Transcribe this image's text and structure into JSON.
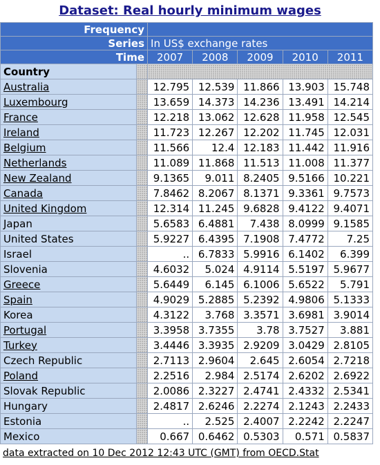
{
  "header": {
    "title": "Dataset: Real hourly minimum wages"
  },
  "table": {
    "frequency_label": "Frequency",
    "series_label": "Series",
    "series_value": "In US$ exchange rates",
    "time_label": "Time",
    "years": [
      "2007",
      "2008",
      "2009",
      "2010",
      "2011"
    ],
    "country_label": "Country",
    "rows": [
      {
        "country": "Australia",
        "linked": true,
        "values": [
          12.795,
          12.539,
          11.866,
          13.903,
          15.748
        ]
      },
      {
        "country": "Luxembourg",
        "linked": true,
        "values": [
          13.659,
          14.373,
          14.236,
          13.491,
          14.214
        ]
      },
      {
        "country": "France",
        "linked": true,
        "values": [
          12.218,
          13.062,
          12.628,
          11.958,
          12.545
        ]
      },
      {
        "country": "Ireland",
        "linked": true,
        "values": [
          11.723,
          12.267,
          12.202,
          11.745,
          12.031
        ]
      },
      {
        "country": "Belgium",
        "linked": true,
        "values": [
          11.566,
          12.4,
          12.183,
          11.442,
          11.916
        ]
      },
      {
        "country": "Netherlands",
        "linked": true,
        "values": [
          11.089,
          11.868,
          11.513,
          11.008,
          11.377
        ]
      },
      {
        "country": "New Zealand",
        "linked": true,
        "values": [
          9.1365,
          9.011,
          8.2405,
          9.5166,
          10.221
        ]
      },
      {
        "country": "Canada",
        "linked": true,
        "values": [
          7.8462,
          8.2067,
          8.1371,
          9.3361,
          9.7573
        ]
      },
      {
        "country": "United Kingdom",
        "linked": true,
        "values": [
          12.314,
          11.245,
          9.6828,
          9.4122,
          9.4071
        ]
      },
      {
        "country": "Japan",
        "linked": false,
        "values": [
          5.6583,
          6.4881,
          7.438,
          8.0999,
          9.1585
        ]
      },
      {
        "country": "United States",
        "linked": false,
        "values": [
          5.9227,
          6.4395,
          7.1908,
          7.4772,
          7.25
        ]
      },
      {
        "country": "Israel",
        "linked": false,
        "values": [
          "..",
          6.7833,
          5.9916,
          6.1402,
          6.399
        ]
      },
      {
        "country": "Slovenia",
        "linked": false,
        "values": [
          4.6032,
          5.024,
          4.9114,
          5.5197,
          5.9677
        ]
      },
      {
        "country": "Greece",
        "linked": true,
        "values": [
          5.6449,
          6.145,
          6.1006,
          5.6522,
          5.791
        ]
      },
      {
        "country": "Spain",
        "linked": true,
        "values": [
          4.9029,
          5.2885,
          5.2392,
          4.9806,
          5.1333
        ]
      },
      {
        "country": "Korea",
        "linked": false,
        "values": [
          4.3122,
          3.768,
          3.3571,
          3.6981,
          3.9014
        ]
      },
      {
        "country": "Portugal",
        "linked": true,
        "values": [
          3.3958,
          3.7355,
          3.78,
          3.7527,
          3.881
        ]
      },
      {
        "country": "Turkey",
        "linked": true,
        "values": [
          3.4446,
          3.3935,
          2.9209,
          3.0429,
          2.8105
        ]
      },
      {
        "country": "Czech Republic",
        "linked": false,
        "values": [
          2.7113,
          2.9604,
          2.645,
          2.6054,
          2.7218
        ]
      },
      {
        "country": "Poland",
        "linked": true,
        "values": [
          2.2516,
          2.984,
          2.5174,
          2.6202,
          2.6922
        ]
      },
      {
        "country": "Slovak Republic",
        "linked": false,
        "values": [
          2.0086,
          2.3227,
          2.4741,
          2.4332,
          2.5341
        ]
      },
      {
        "country": "Hungary",
        "linked": false,
        "values": [
          2.4817,
          2.6246,
          2.2274,
          2.1243,
          2.2433
        ]
      },
      {
        "country": "Estonia",
        "linked": false,
        "values": [
          "..",
          2.525,
          2.4007,
          2.2242,
          2.2247
        ]
      },
      {
        "country": "Mexico",
        "linked": false,
        "values": [
          0.667,
          0.6462,
          0.5303,
          0.571,
          0.5837
        ]
      }
    ]
  },
  "footer": {
    "text": "data extracted on 10 Dec 2012 12:43 UTC (GMT) from OECD.Stat"
  }
}
